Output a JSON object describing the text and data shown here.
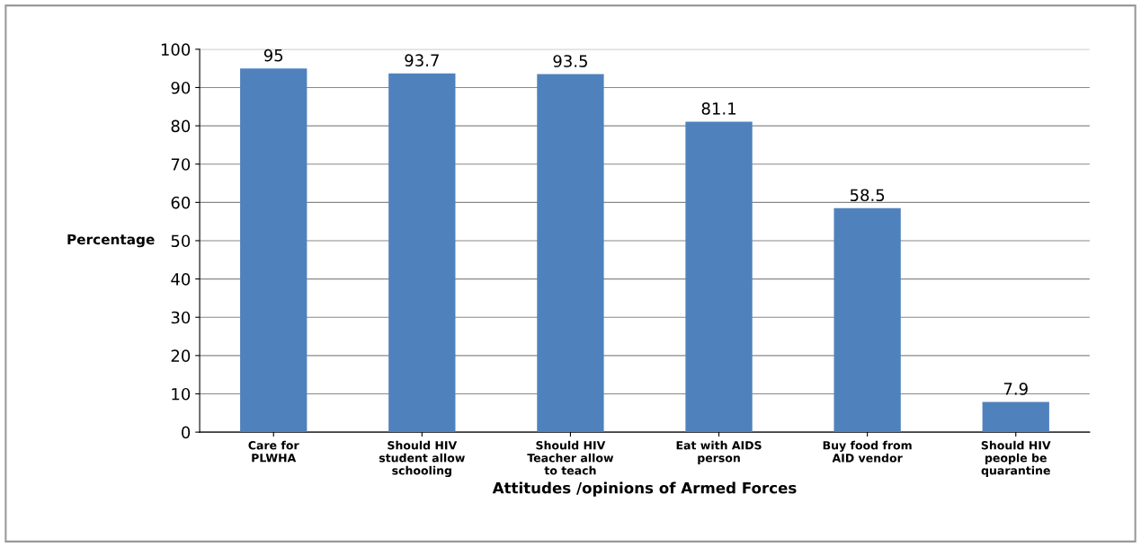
{
  "chart_data": {
    "type": "bar",
    "xlabel": "Attitudes /opinions of Armed Forces",
    "ylabel": "Percentage",
    "categories": [
      "Care for\nPLWHA",
      "Should HIV\nstudent allow\nschooling",
      "Should HIV\nTeacher allow\nto teach",
      "Eat with AIDS\nperson",
      "Buy food from\nAID vendor",
      "Should HIV\npeople be\nquarantine"
    ],
    "values": [
      95,
      93.7,
      93.5,
      81.1,
      58.5,
      7.9
    ],
    "color": "#4f81bd",
    "ylim": [
      0,
      100
    ],
    "yticks": [
      0,
      10,
      20,
      30,
      40,
      50,
      60,
      70,
      80,
      90,
      100
    ],
    "grid": "y",
    "data_labels": true
  }
}
